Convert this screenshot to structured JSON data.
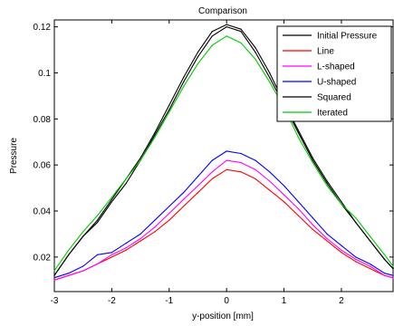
{
  "chart_data": {
    "type": "line",
    "title": "Comparison",
    "xlabel": "y-position [mm]",
    "ylabel": "Pressure",
    "xlim": [
      -3,
      2.9
    ],
    "ylim": [
      0.005,
      0.123
    ],
    "grid": false,
    "legend_position": "top-right",
    "xticks": [
      -3,
      -2,
      -1,
      0,
      1,
      2
    ],
    "xtick_labels": [
      "-3",
      "-2",
      "-1",
      "0",
      "1",
      "2"
    ],
    "yticks": [
      0.02,
      0.04,
      0.06,
      0.08,
      0.1,
      0.12
    ],
    "ytick_labels": [
      "0.02",
      "0.04",
      "0.06",
      "0.08",
      "0.1",
      "0.12"
    ],
    "x": [
      -3.0,
      -2.75,
      -2.5,
      -2.25,
      -2.0,
      -1.75,
      -1.5,
      -1.25,
      -1.0,
      -0.75,
      -0.5,
      -0.25,
      0.0,
      0.25,
      0.5,
      0.75,
      1.0,
      1.25,
      1.5,
      1.75,
      2.0,
      2.25,
      2.5,
      2.75,
      2.9
    ],
    "series": [
      {
        "name": "Initial Pressure",
        "color": "#000000",
        "values": [
          0.012,
          0.021,
          0.029,
          0.036,
          0.045,
          0.054,
          0.063,
          0.074,
          0.086,
          0.098,
          0.109,
          0.118,
          0.121,
          0.119,
          0.111,
          0.1,
          0.087,
          0.075,
          0.063,
          0.053,
          0.044,
          0.035,
          0.027,
          0.019,
          0.015
        ]
      },
      {
        "name": "Line",
        "color": "#ff0000",
        "values": [
          0.01,
          0.012,
          0.014,
          0.017,
          0.02,
          0.023,
          0.027,
          0.031,
          0.036,
          0.042,
          0.048,
          0.054,
          0.058,
          0.057,
          0.054,
          0.049,
          0.044,
          0.038,
          0.032,
          0.027,
          0.022,
          0.018,
          0.015,
          0.012,
          0.011
        ]
      },
      {
        "name": "L-shaped",
        "color": "#ff00ff",
        "values": [
          0.01,
          0.012,
          0.014,
          0.017,
          0.021,
          0.024,
          0.028,
          0.033,
          0.039,
          0.045,
          0.051,
          0.057,
          0.062,
          0.061,
          0.058,
          0.053,
          0.047,
          0.041,
          0.034,
          0.028,
          0.023,
          0.019,
          0.016,
          0.012,
          0.011
        ]
      },
      {
        "name": "U-shaped",
        "color": "#0000ff",
        "values": [
          0.011,
          0.013,
          0.016,
          0.021,
          0.022,
          0.026,
          0.03,
          0.036,
          0.042,
          0.048,
          0.055,
          0.062,
          0.066,
          0.065,
          0.062,
          0.057,
          0.051,
          0.044,
          0.037,
          0.03,
          0.025,
          0.02,
          0.017,
          0.013,
          0.012
        ]
      },
      {
        "name": "Squared",
        "color": "#000000",
        "values": [
          0.012,
          0.021,
          0.029,
          0.035,
          0.044,
          0.052,
          0.062,
          0.073,
          0.084,
          0.096,
          0.107,
          0.116,
          0.12,
          0.118,
          0.109,
          0.098,
          0.086,
          0.074,
          0.062,
          0.052,
          0.043,
          0.035,
          0.027,
          0.019,
          0.015
        ]
      },
      {
        "name": "Iterated",
        "color": "#00cc00",
        "values": [
          0.014,
          0.023,
          0.031,
          0.038,
          0.046,
          0.054,
          0.062,
          0.072,
          0.083,
          0.094,
          0.104,
          0.112,
          0.116,
          0.113,
          0.106,
          0.096,
          0.085,
          0.072,
          0.061,
          0.051,
          0.043,
          0.037,
          0.029,
          0.021,
          0.016
        ]
      }
    ]
  }
}
